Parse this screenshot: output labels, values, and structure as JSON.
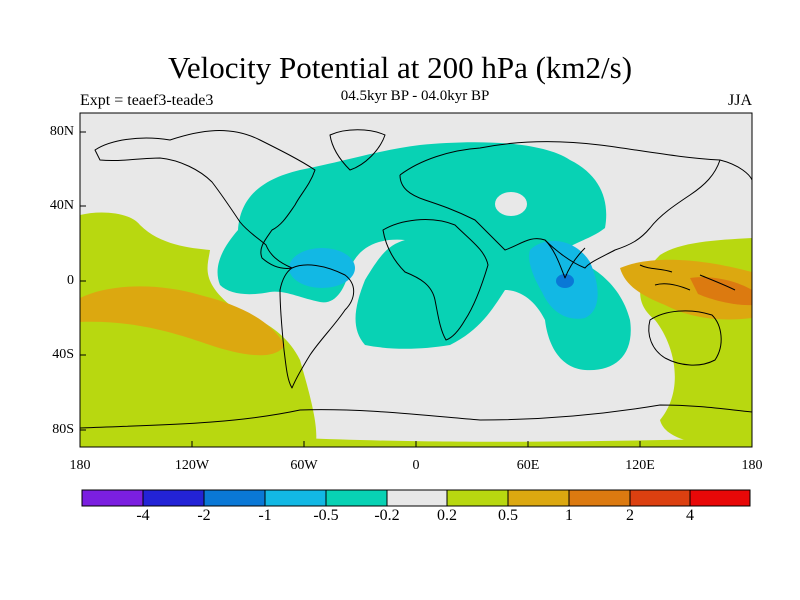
{
  "header": {
    "title": "Velocity Potential at 200 hPa (km2/s)",
    "experiment": "Expt = teaef3-teade3",
    "period": "04.5kyr BP - 04.0kyr BP",
    "season": "JJA"
  },
  "axes": {
    "lat_ticks": [
      "80N",
      "40N",
      "0",
      "40S",
      "80S"
    ],
    "lon_ticks": [
      "180",
      "120W",
      "60W",
      "0",
      "60E",
      "120E",
      "180"
    ]
  },
  "legend": {
    "colors": [
      "#7b1fe0",
      "#2323d6",
      "#0a78d6",
      "#12b8e4",
      "#08d2b4",
      "#e8e8e8",
      "#b8d810",
      "#dca810",
      "#dc7a10",
      "#dc4010",
      "#e80808"
    ],
    "labels": [
      "-4",
      "-2",
      "-1",
      "-0.5",
      "-0.2",
      "0.2",
      "0.5",
      "1",
      "2",
      "4"
    ]
  },
  "colors": {
    "neutral": "#e8e8e8",
    "teal": "#08d2b4",
    "cyan": "#12b8e4",
    "blue": "#0a78d6",
    "yellow_green": "#b8d810",
    "orange": "#dca810",
    "dark_orange": "#dc7a10"
  }
}
